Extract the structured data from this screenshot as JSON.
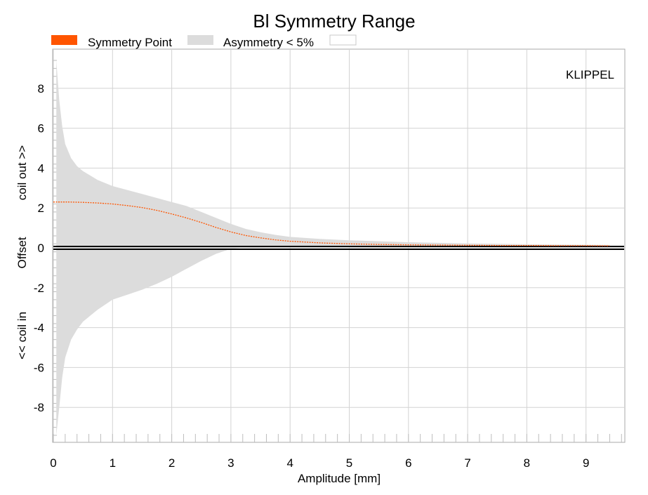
{
  "chart_data": {
    "type": "area",
    "title": "Bl Symmetry Range",
    "xlabel": "Amplitude [mm]",
    "ylabel_lines": [
      "<< coil in",
      "Offset",
      "coil out >>"
    ],
    "watermark": "KLIPPEL",
    "xlim": [
      0,
      9.6
    ],
    "ylim": [
      -9.5,
      9.5
    ],
    "xticks": [
      0,
      1,
      2,
      3,
      4,
      5,
      6,
      7,
      8,
      9
    ],
    "yticks": [
      -8,
      -6,
      -4,
      -2,
      0,
      2,
      4,
      6,
      8
    ],
    "grid": true,
    "legend_position": "top-left",
    "legend": [
      {
        "name": "Symmetry Point",
        "color": "#ff5500",
        "kind": "fill"
      },
      {
        "name": "Asymmetry < 5%",
        "color": "#dcdcdc",
        "kind": "fill"
      },
      {
        "name": "",
        "color": "#ffffff",
        "kind": "fill"
      }
    ],
    "series": [
      {
        "name": "Symmetry Point",
        "color": "#ff5500",
        "x": [
          0.0,
          0.25,
          0.5,
          0.75,
          1.0,
          1.25,
          1.5,
          1.75,
          2.0,
          2.25,
          2.5,
          2.75,
          3.0,
          3.25,
          3.5,
          3.75,
          4.0,
          4.5,
          5.0,
          5.5,
          6.0,
          6.5,
          7.0,
          7.5,
          8.0,
          8.5,
          9.0,
          9.4
        ],
        "values": [
          2.3,
          2.3,
          2.28,
          2.25,
          2.2,
          2.12,
          2.02,
          1.88,
          1.7,
          1.5,
          1.27,
          1.02,
          0.8,
          0.62,
          0.5,
          0.4,
          0.33,
          0.25,
          0.2,
          0.17,
          0.15,
          0.14,
          0.13,
          0.12,
          0.12,
          0.11,
          0.11,
          0.1
        ]
      },
      {
        "name": "Asymmetry < 5%",
        "color": "#dcdcdc",
        "x": [
          0.05,
          0.1,
          0.15,
          0.2,
          0.3,
          0.4,
          0.5,
          0.75,
          1.0,
          1.25,
          1.5,
          1.75,
          2.0,
          2.25,
          2.5,
          2.75,
          3.0,
          3.25,
          3.5,
          3.75,
          4.0,
          4.5,
          5.0,
          5.5,
          6.0,
          6.5,
          7.0,
          7.5,
          8.0,
          8.5,
          9.0,
          9.4
        ],
        "upper": [
          9.4,
          7.4,
          6.1,
          5.2,
          4.5,
          4.1,
          3.85,
          3.4,
          3.1,
          2.9,
          2.7,
          2.5,
          2.3,
          2.1,
          1.8,
          1.5,
          1.2,
          0.95,
          0.78,
          0.65,
          0.55,
          0.45,
          0.38,
          0.33,
          0.28,
          0.25,
          0.22,
          0.2,
          0.18,
          0.17,
          0.16,
          0.15
        ],
        "lower": [
          -9.4,
          -8.0,
          -6.5,
          -5.5,
          -4.6,
          -4.1,
          -3.7,
          -3.1,
          -2.6,
          -2.35,
          -2.1,
          -1.8,
          -1.45,
          -1.05,
          -0.65,
          -0.3,
          -0.05,
          0.0,
          0.02,
          0.03,
          0.03,
          0.03,
          0.03,
          0.03,
          0.03,
          0.03,
          0.03,
          0.03,
          0.03,
          0.03,
          0.03,
          0.03
        ]
      }
    ]
  }
}
